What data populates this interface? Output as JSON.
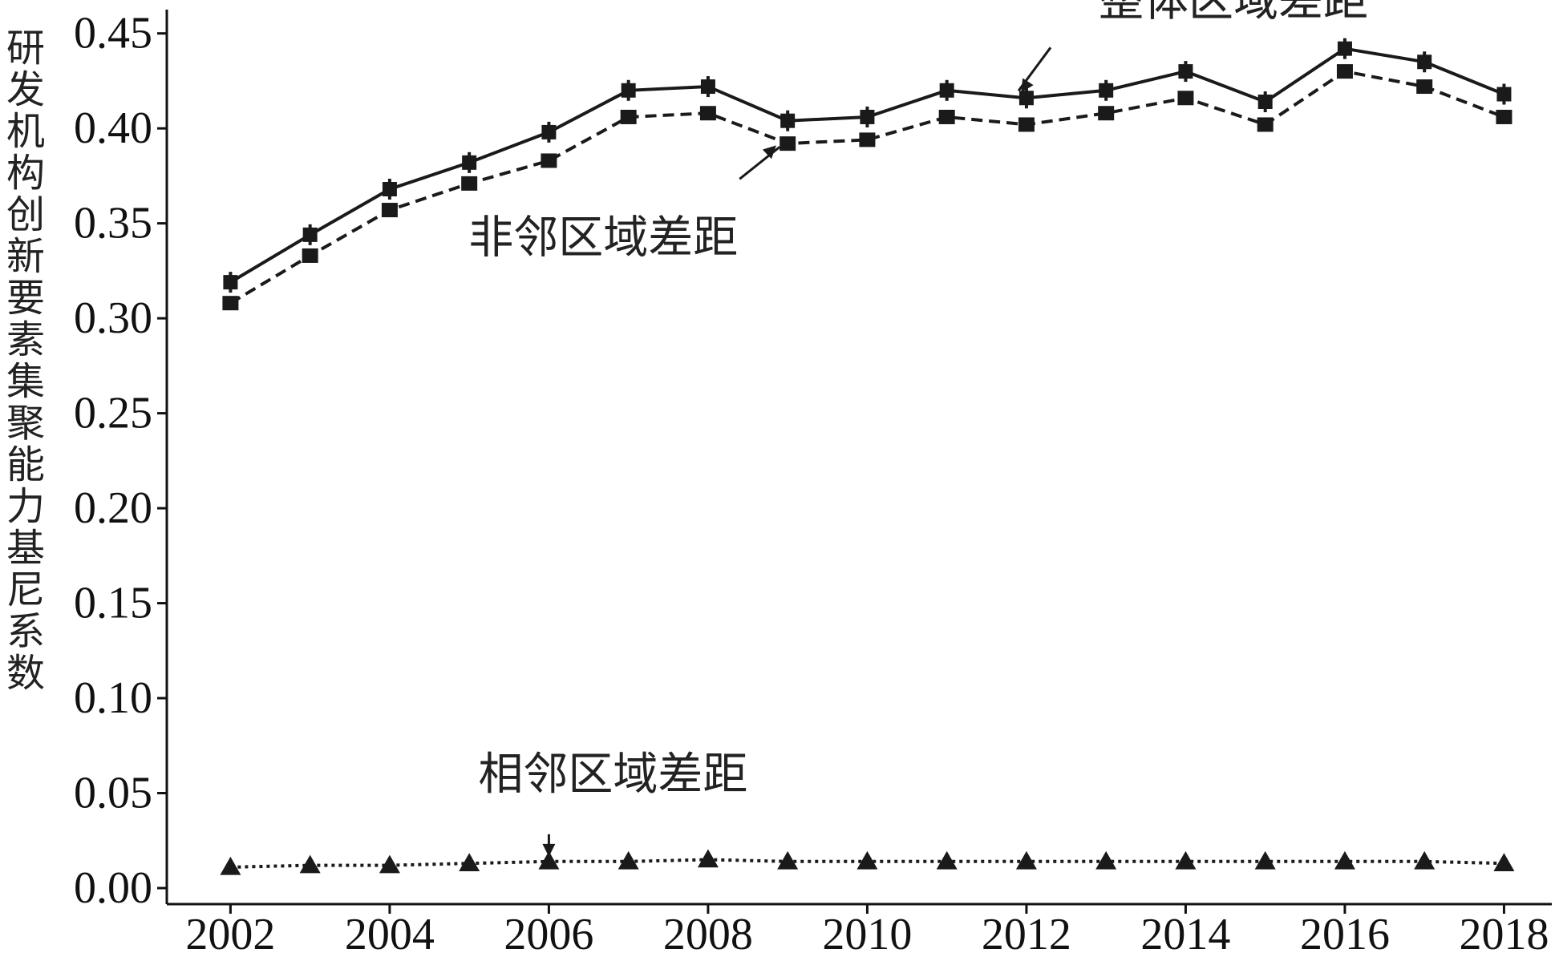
{
  "chart_data": {
    "type": "line",
    "ylabel": "研发机构创新要素集聚能力基尼系数",
    "xlabel": "",
    "x": [
      2002,
      2003,
      2004,
      2005,
      2006,
      2007,
      2008,
      2009,
      2010,
      2011,
      2012,
      2013,
      2014,
      2015,
      2016,
      2017,
      2018
    ],
    "x_ticks": [
      "2002",
      "2004",
      "2006",
      "2008",
      "2010",
      "2012",
      "2014",
      "2016",
      "2018"
    ],
    "y_ticks": [
      "0.00",
      "0.05",
      "0.10",
      "0.15",
      "0.20",
      "0.25",
      "0.30",
      "0.35",
      "0.40",
      "0.45"
    ],
    "ylim": [
      0,
      0.46
    ],
    "xlim": [
      2001.2,
      2018.6
    ],
    "grid": false,
    "series": [
      {
        "name": "整体区域差距",
        "line_style": "solid",
        "marker": "plus-square",
        "values": [
          0.319,
          0.344,
          0.368,
          0.382,
          0.398,
          0.42,
          0.422,
          0.404,
          0.406,
          0.42,
          0.416,
          0.42,
          0.43,
          0.414,
          0.442,
          0.435,
          0.418
        ]
      },
      {
        "name": "非邻区域差距",
        "line_style": "dashed",
        "marker": "square",
        "values": [
          0.308,
          0.333,
          0.357,
          0.371,
          0.383,
          0.406,
          0.408,
          0.392,
          0.394,
          0.406,
          0.402,
          0.408,
          0.416,
          0.402,
          0.43,
          0.422,
          0.406
        ]
      },
      {
        "name": "相邻区域差距",
        "line_style": "dotted",
        "marker": "triangle",
        "values": [
          0.011,
          0.012,
          0.012,
          0.013,
          0.014,
          0.014,
          0.015,
          0.014,
          0.014,
          0.014,
          0.014,
          0.014,
          0.014,
          0.014,
          0.014,
          0.014,
          0.013
        ]
      }
    ],
    "annotations": [
      {
        "text": "整体区域差距",
        "series": 0,
        "x": 2011.9
      },
      {
        "text": "非邻区域差距",
        "series": 1,
        "x": 2008.9
      },
      {
        "text": "相邻区域差距",
        "series": 2,
        "x": 2006.0
      }
    ],
    "colors": {
      "line": "#1a1a1a",
      "axis": "#111111"
    }
  }
}
